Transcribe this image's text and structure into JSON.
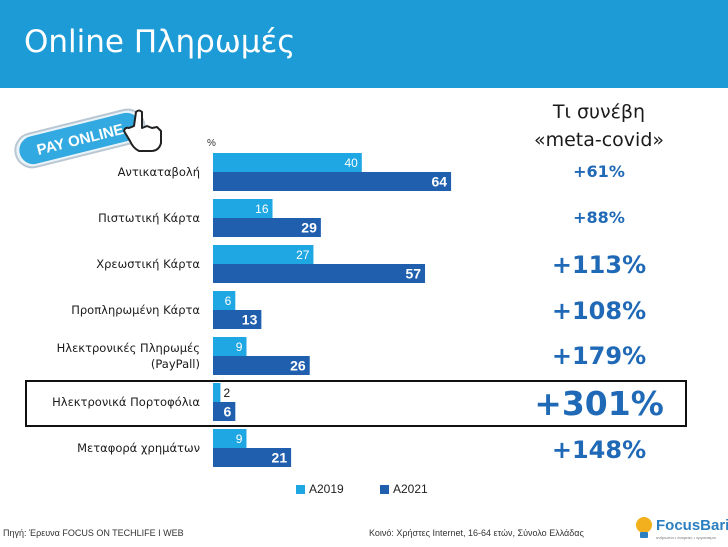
{
  "header": {
    "title": "Online Πληρωμές"
  },
  "badge": {
    "text": "PAY ONLINE"
  },
  "covid_header": {
    "line1": "Τι συνέβη",
    "line2": "«meta-covid»"
  },
  "colors": {
    "a2019": "#1ea7e3",
    "a2021": "#1f5fae",
    "header_bg": "#1d9bd7",
    "pct_text": "#1f69b6"
  },
  "chart_data": {
    "type": "bar",
    "orientation": "horizontal",
    "unit_label": "%",
    "categories": [
      [
        "Αντικαταβολή"
      ],
      [
        "Πιστωτική Κάρτα"
      ],
      [
        "Χρεωστική Κάρτα"
      ],
      [
        "Προπληρωμένη Κάρτα"
      ],
      [
        "Ηλεκτρονικές Πληρωμές",
        "(PayPall)"
      ],
      [
        "Ηλεκτρονικά Πορτοφόλια"
      ],
      [
        "Μεταφορά χρημάτων"
      ]
    ],
    "series": [
      {
        "name": "A2019",
        "values": [
          40,
          16,
          27,
          6,
          9,
          2,
          9
        ]
      },
      {
        "name": "A2021",
        "values": [
          64,
          29,
          57,
          13,
          26,
          6,
          21
        ]
      }
    ],
    "xlim": [
      0,
      100
    ],
    "legend": "bottom"
  },
  "changes": [
    "+61%",
    "+88%",
    "+113%",
    "+108%",
    "+179%",
    "+301%",
    "+148%"
  ],
  "footer": {
    "source": "Πηγή: Έρευνα FOCUS ON TECHLIFE I WEB",
    "base": "Κοινό: Χρήστες Internet, 16-64 ετών, Σύνολο Ελλάδας"
  },
  "brand": {
    "name": "FocusBari",
    "tagline": "ανθρωποι • εταιρειες • οργανισμοι"
  }
}
